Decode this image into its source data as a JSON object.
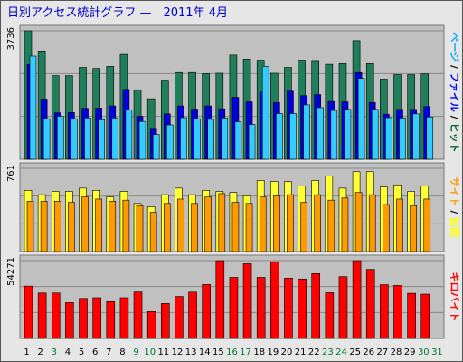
{
  "title": "日別アクセス統計グラフ —　2011年 4月",
  "chart_data": [
    {
      "type": "bar",
      "panel": "hits",
      "categories": [
        "1",
        "2",
        "3",
        "4",
        "5",
        "6",
        "7",
        "8",
        "9",
        "10",
        "11",
        "12",
        "13",
        "14",
        "15",
        "16",
        "17",
        "18",
        "19",
        "20",
        "21",
        "22",
        "23",
        "24",
        "25",
        "26",
        "27",
        "28",
        "29",
        "30",
        "31"
      ],
      "ytick_label": "3736",
      "ylim": [
        0,
        3736
      ],
      "right_label_parts": [
        {
          "text": "ページ",
          "color": "#00aaff"
        },
        {
          "text": " / ",
          "color": "#000000"
        },
        {
          "text": "ファイル",
          "color": "#0000ff"
        },
        {
          "text": " / ",
          "color": "#000000"
        },
        {
          "text": "ヒット",
          "color": "#006633"
        }
      ],
      "series": [
        {
          "name": "ヒット",
          "color": "#1f7f5a",
          "values": [
            3750,
            3150,
            2430,
            2430,
            2670,
            2640,
            2700,
            3050,
            2020,
            1760,
            2300,
            2520,
            2520,
            2490,
            2500,
            3030,
            2910,
            2880,
            2500,
            2670,
            2880,
            2870,
            2760,
            2780,
            3450,
            2780,
            2330,
            2460,
            2460,
            2480,
            0
          ]
        },
        {
          "name": "ファイル",
          "color": "#0000dd",
          "values": [
            2750,
            1750,
            1350,
            1360,
            1480,
            1490,
            1550,
            2030,
            1250,
            900,
            1320,
            1550,
            1460,
            1550,
            1470,
            1800,
            1670,
            1950,
            1650,
            1980,
            1850,
            1880,
            1680,
            1670,
            2520,
            1650,
            1310,
            1450,
            1450,
            1530,
            0
          ]
        },
        {
          "name": "ページ",
          "color": "#33ccff",
          "values": [
            3000,
            1180,
            1250,
            1180,
            1200,
            1150,
            1200,
            1430,
            1100,
            720,
            1000,
            1210,
            1180,
            1160,
            1200,
            1090,
            1010,
            2700,
            1330,
            1330,
            1580,
            1500,
            1420,
            1450,
            2350,
            1450,
            1210,
            1200,
            1320,
            1230,
            0
          ]
        }
      ]
    },
    {
      "type": "bar",
      "panel": "visits",
      "categories": [
        "1",
        "2",
        "3",
        "4",
        "5",
        "6",
        "7",
        "8",
        "9",
        "10",
        "11",
        "12",
        "13",
        "14",
        "15",
        "16",
        "17",
        "18",
        "19",
        "20",
        "21",
        "22",
        "23",
        "24",
        "25",
        "26",
        "27",
        "28",
        "29",
        "30",
        "31"
      ],
      "ytick_label": "761",
      "ylim": [
        0,
        761
      ],
      "right_label_parts": [
        {
          "text": "サイト",
          "color": "#ff9900"
        },
        {
          "text": " / ",
          "color": "#000000"
        },
        {
          "text": "訪問",
          "color": "#ffff00"
        }
      ],
      "series": [
        {
          "name": "訪問",
          "color": "#ffff33",
          "values": [
            560,
            520,
            550,
            550,
            580,
            560,
            500,
            550,
            440,
            410,
            520,
            580,
            520,
            560,
            550,
            540,
            510,
            650,
            640,
            640,
            600,
            650,
            690,
            580,
            730,
            730,
            590,
            610,
            550,
            600,
            0
          ]
        },
        {
          "name": "サイト",
          "color": "#ff9900",
          "values": [
            460,
            460,
            460,
            450,
            500,
            480,
            460,
            470,
            420,
            360,
            440,
            480,
            440,
            500,
            530,
            450,
            440,
            500,
            510,
            520,
            450,
            520,
            470,
            490,
            540,
            520,
            430,
            480,
            420,
            480,
            0
          ]
        }
      ]
    },
    {
      "type": "bar",
      "panel": "kilobytes",
      "categories": [
        "1",
        "2",
        "3",
        "4",
        "5",
        "6",
        "7",
        "8",
        "9",
        "10",
        "11",
        "12",
        "13",
        "14",
        "15",
        "16",
        "17",
        "18",
        "19",
        "20",
        "21",
        "22",
        "23",
        "24",
        "25",
        "26",
        "27",
        "28",
        "29",
        "30",
        "31"
      ],
      "ytick_label": "54271",
      "ylim": [
        0,
        54271
      ],
      "right_label_parts": [
        {
          "text": "キロバイト",
          "color": "#ff0000"
        }
      ],
      "series": [
        {
          "name": "キロバイト",
          "color": "#ff0000",
          "values": [
            36500,
            31700,
            31700,
            25000,
            27900,
            28400,
            25700,
            28400,
            32400,
            18700,
            24400,
            29300,
            32300,
            37600,
            54300,
            42600,
            52100,
            42600,
            53500,
            42100,
            41500,
            45200,
            31900,
            43100,
            56200,
            48200,
            37500,
            37000,
            31500,
            30900,
            0
          ]
        }
      ]
    }
  ],
  "x_label_colors": [
    "#000000",
    "#000000",
    "#007733",
    "#000000",
    "#000000",
    "#000000",
    "#000000",
    "#000000",
    "#007733",
    "#007733",
    "#000000",
    "#000000",
    "#000000",
    "#000000",
    "#000000",
    "#007733",
    "#007733",
    "#000000",
    "#000000",
    "#000000",
    "#000000",
    "#000000",
    "#007733",
    "#007733",
    "#000000",
    "#000000",
    "#000000",
    "#000000",
    "#000000",
    "#007733",
    "#007733"
  ]
}
